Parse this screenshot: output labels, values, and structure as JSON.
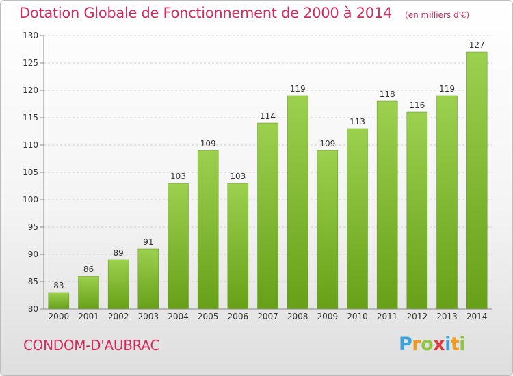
{
  "header": {
    "title": "Dotation Globale de Fonctionnement de 2000 à 2014",
    "unit": "(en milliers d'€)"
  },
  "footer": {
    "commune": "CONDOM-D'AUBRAC",
    "logo": "Proxiti"
  },
  "chart_data": {
    "type": "bar",
    "title": "Dotation Globale de Fonctionnement de 2000 à 2014",
    "subtitle": "(en milliers d'€)",
    "categories": [
      "2000",
      "2001",
      "2002",
      "2003",
      "2004",
      "2005",
      "2006",
      "2007",
      "2008",
      "2009",
      "2010",
      "2011",
      "2012",
      "2013",
      "2014"
    ],
    "values": [
      83,
      86,
      89,
      91,
      103,
      109,
      103,
      114,
      119,
      109,
      113,
      118,
      116,
      119,
      127
    ],
    "ylim": [
      80,
      130
    ],
    "yticks": [
      80,
      85,
      90,
      95,
      100,
      105,
      110,
      115,
      120,
      125,
      130
    ],
    "grid": true,
    "bar_color": "#7ab52e"
  }
}
